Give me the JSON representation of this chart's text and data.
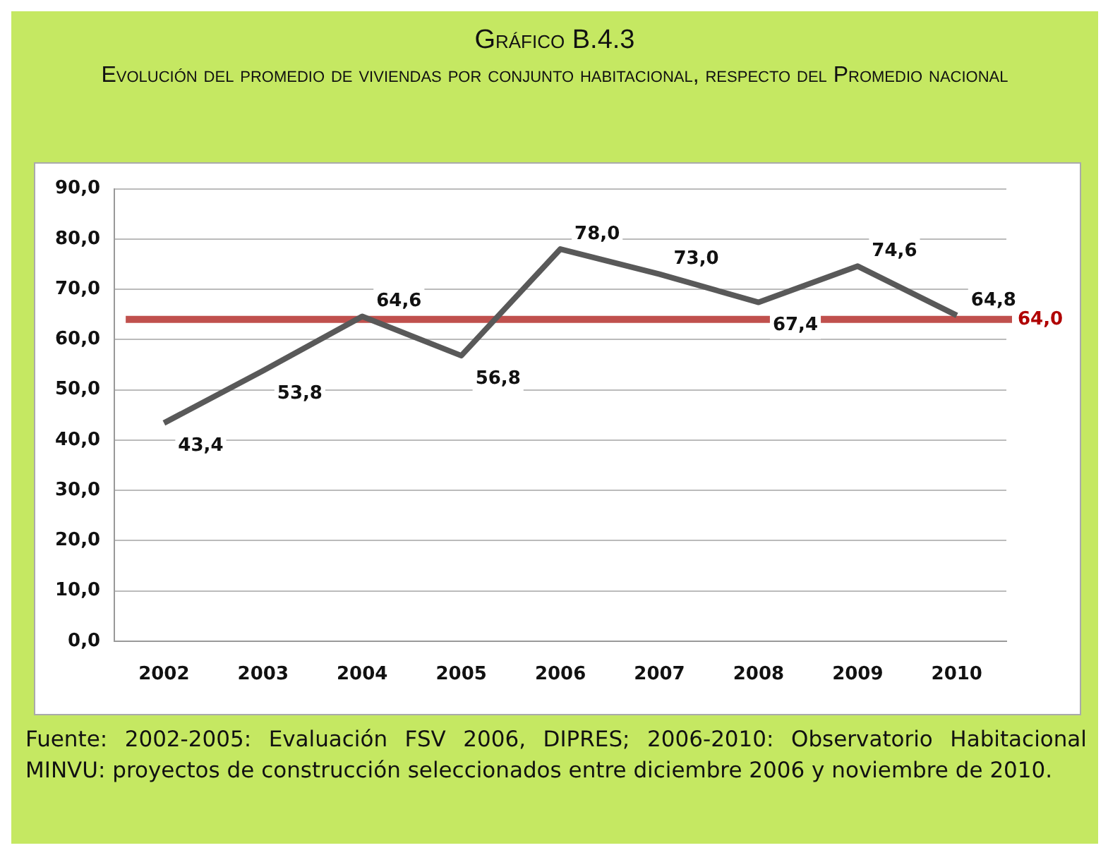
{
  "chart_data": {
    "type": "line",
    "title": "Gráfico B.4.3",
    "subtitle": "Evolución del promedio de viviendas por conjunto habitacional, respecto del Promedio nacional",
    "categories": [
      "2002",
      "2003",
      "2004",
      "2005",
      "2006",
      "2007",
      "2008",
      "2009",
      "2010"
    ],
    "series": [
      {
        "color": "#595959",
        "values": [
          43.4,
          53.8,
          64.6,
          56.8,
          78.0,
          73.0,
          67.4,
          74.6,
          64.8
        ],
        "value_labels": [
          "43,4",
          "53,8",
          "64,6",
          "56,8",
          "78,0",
          "73,0",
          "67,4",
          "74,6",
          "64,8"
        ]
      }
    ],
    "ylim": [
      0,
      90
    ],
    "yticks": [
      {
        "value": 0,
        "label": "0,0"
      },
      {
        "value": 10,
        "label": "10,0"
      },
      {
        "value": 20,
        "label": "20,0"
      },
      {
        "value": 30,
        "label": "30,0"
      },
      {
        "value": 40,
        "label": "40,0"
      },
      {
        "value": 50,
        "label": "50,0"
      },
      {
        "value": 60,
        "label": "60,0"
      },
      {
        "value": 70,
        "label": "70,0"
      },
      {
        "value": 80,
        "label": "80,0"
      },
      {
        "value": 90,
        "label": "90,0"
      }
    ],
    "ref_lines": [
      {
        "axis": "y",
        "value": 64.0,
        "label": "64,0",
        "color": "#c0504d"
      }
    ],
    "grid": "y",
    "legend": false,
    "marker": "none",
    "line_style": "solid",
    "annotations": [
      "Fuente: 2002-2005: Evaluación FSV 2006, DIPRES; 2006-2010: Observatorio Habitacional MINVU: proyectos de construcción seleccionados entre diciembre 2006 y noviembre de 2010."
    ]
  }
}
